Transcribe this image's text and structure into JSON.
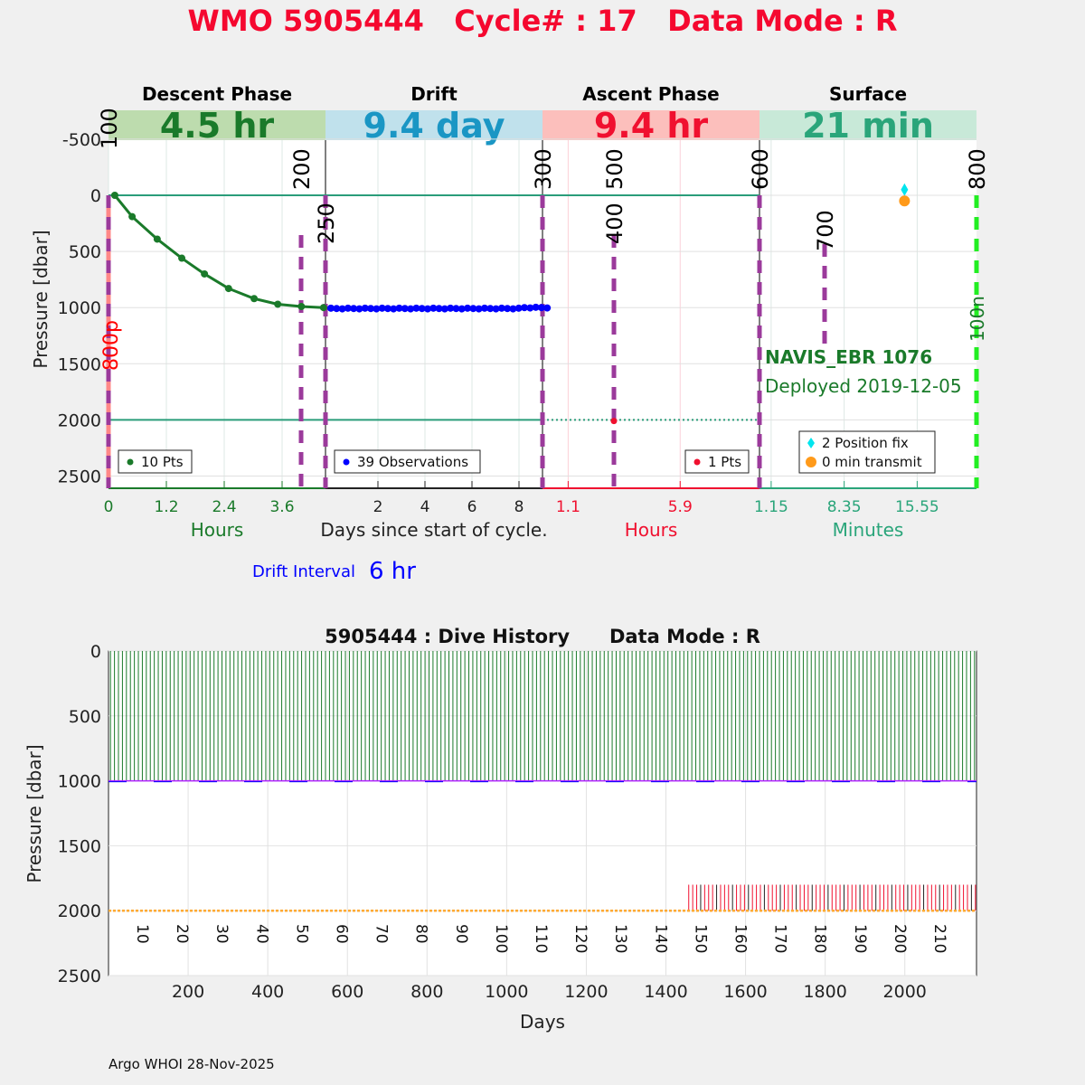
{
  "title": "WMO 5905444   Cycle# : 17   Data Mode : R",
  "footer": "Argo WHOI 28-Nov-2025",
  "chart_data": [
    {
      "type": "line",
      "name": "cycle-profile",
      "ylabel": "Pressure [dbar]",
      "ylim": [
        -760,
        2600
      ],
      "yticks": [
        -500,
        0,
        500,
        1000,
        1500,
        2000,
        2500
      ],
      "xlabel_center": "Days since start of cycle.",
      "drift_interval_label": "Drift Interval",
      "drift_interval_value": "6 hr",
      "phases": [
        {
          "name": "Descent Phase",
          "duration": "4.5 hr",
          "color": "#1a7a2a",
          "band": "#bddcae",
          "unit_label": "Hours",
          "unit_color": "#1a7a2a",
          "xlim": [
            0,
            4.5
          ],
          "ticks": [
            0,
            1.2,
            2.4,
            3.6
          ],
          "tick_labels": [
            "0",
            "1.2",
            "2.4",
            "3.6"
          ],
          "legend": "10 Pts"
        },
        {
          "name": "Drift",
          "duration": "9.4 day",
          "color": "#1a96c4",
          "band": "#c0e1ec",
          "unit_label": "",
          "unit_color": "#222",
          "xlim": [
            -0.23,
            9.0
          ],
          "ticks": [
            2,
            4,
            6,
            8
          ],
          "tick_labels": [
            "2",
            "4",
            "6",
            "8"
          ],
          "legend": "39 Observations"
        },
        {
          "name": "Ascent Phase",
          "duration": "9.4 hr",
          "color": "#f0102f",
          "band": "#fcbfbc",
          "unit_label": "Hours",
          "unit_color": "#f0102f",
          "xlim": [
            0,
            9.3
          ],
          "ticks": [
            1.1,
            5.9
          ],
          "tick_labels": [
            "1.1",
            "5.9"
          ],
          "legend": "1 Pts"
        },
        {
          "name": "Surface",
          "duration": "21 min",
          "color": "#2aa57a",
          "band": "#c8e9d8",
          "unit_label": "Minutes",
          "unit_color": "#2aa57a",
          "xlim": [
            0,
            21.4
          ],
          "ticks": [
            1.15,
            8.35,
            15.55
          ],
          "tick_labels": [
            "1.15",
            "8.35",
            "15.55"
          ],
          "legend": "2 Position fix",
          "legend2": "0 min transmit"
        }
      ],
      "descent": {
        "hours": [
          0.13,
          0.49,
          1.01,
          1.52,
          1.99,
          2.49,
          3.02,
          3.51,
          4.0,
          4.46
        ],
        "pressure": [
          0,
          190,
          390,
          560,
          700,
          830,
          920,
          970,
          990,
          1000
        ]
      },
      "drift": {
        "count": 39,
        "start_day": 0.0,
        "end_day": 9.2,
        "pressure": 1005
      },
      "ascent": {
        "hours": [
          3.06
        ],
        "pressure": [
          2010
        ]
      },
      "surface": {
        "position_fix": {
          "minutes": 14.3,
          "pressure": -50
        },
        "transmit": {
          "minutes": 14.3,
          "pressure": 50
        }
      },
      "markers": [
        {
          "label": "100",
          "pos": "top"
        },
        {
          "label": "200",
          "pos": "top"
        },
        {
          "label": "250",
          "pos": "low"
        },
        {
          "label": "300",
          "pos": "top"
        },
        {
          "label": "500",
          "pos": "top"
        },
        {
          "label": "400",
          "pos": "low"
        },
        {
          "label": "600",
          "pos": "top"
        },
        {
          "label": "700",
          "pos": "low"
        },
        {
          "label": "800",
          "pos": "top"
        }
      ],
      "side_labels": {
        "left": "800p",
        "right": "100n"
      },
      "float_type": "NAVIS_EBR 1076",
      "deployed": "Deployed 2019-12-05"
    },
    {
      "type": "line",
      "name": "dive-history",
      "title": "5905444 : Dive History      Data Mode : R",
      "xlabel": "Days",
      "ylabel": "Pressure [dbar]",
      "xlim": [
        0,
        2180
      ],
      "ylim": [
        0,
        2500
      ],
      "xticks": [
        200,
        400,
        600,
        800,
        1000,
        1200,
        1400,
        1600,
        1800,
        2000
      ],
      "yticks": [
        0,
        500,
        1000,
        1500,
        2000,
        2500
      ],
      "cycle_count": 218,
      "cycle_interval_days": 10,
      "park_pressure": 1000,
      "profile_pressure": 2000,
      "ascent_start_pressure": 1800,
      "ascent_lines_from_day": 1450,
      "cycle_labels": [
        10,
        20,
        30,
        40,
        50,
        60,
        70,
        80,
        90,
        100,
        110,
        120,
        130,
        140,
        150,
        160,
        170,
        180,
        190,
        200,
        210
      ]
    }
  ]
}
